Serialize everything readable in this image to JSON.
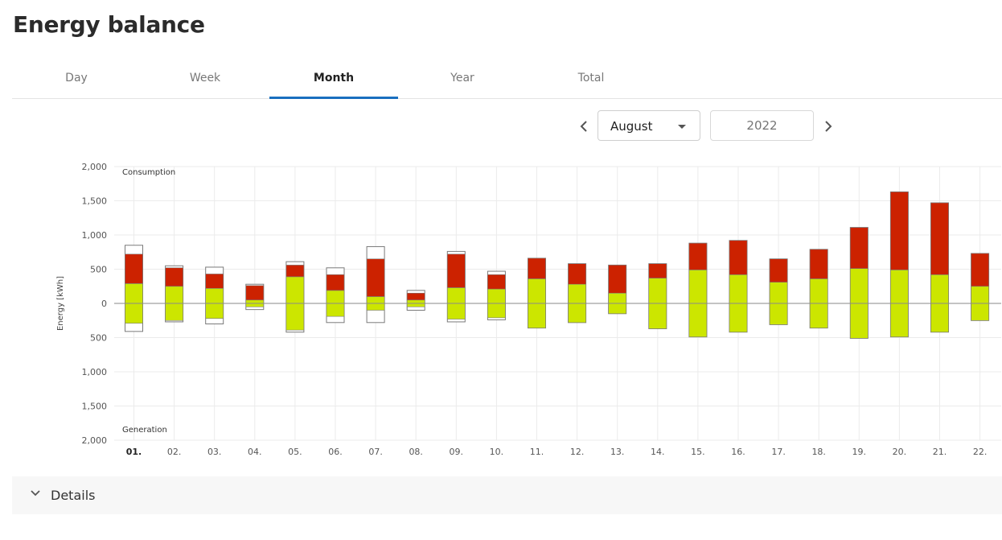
{
  "page": {
    "title": "Energy balance"
  },
  "tabs": [
    {
      "label": "Day",
      "active": false
    },
    {
      "label": "Week",
      "active": false
    },
    {
      "label": "Month",
      "active": true
    },
    {
      "label": "Year",
      "active": false
    },
    {
      "label": "Total",
      "active": false
    }
  ],
  "period": {
    "prev_icon": "chevron-left-icon",
    "next_icon": "chevron-right-icon",
    "month": "August",
    "year_placeholder": "2022"
  },
  "details": {
    "label": "Details",
    "icon": "chevron-down-icon"
  },
  "colors": {
    "consumption_grid": "#cc2200",
    "self_consumption": "#cce600",
    "outline": "#7a7a7a",
    "gridline": "#ebebeb"
  },
  "chart_data": {
    "type": "bar",
    "ylabel": "Energy [kWh]",
    "top_label": "Consumption",
    "bottom_label": "Generation",
    "ylim": [
      -2000,
      2000
    ],
    "yticks": [
      2000,
      1500,
      1000,
      500,
      0,
      -500,
      -1000,
      -1500,
      -2000
    ],
    "ytick_labels": [
      "2,000",
      "1,500",
      "1,000",
      "500",
      "0",
      "500",
      "1,000",
      "1,500",
      "2,000"
    ],
    "categories": [
      "01.",
      "02.",
      "03.",
      "04.",
      "05.",
      "06.",
      "07.",
      "08.",
      "09.",
      "10.",
      "11.",
      "12.",
      "13.",
      "14.",
      "15.",
      "16.",
      "17.",
      "18.",
      "19.",
      "20.",
      "21.",
      "22."
    ],
    "selected_category": "01.",
    "series": [
      {
        "key": "self_consumption",
        "values": [
          290,
          250,
          220,
          50,
          390,
          190,
          100,
          50,
          230,
          210,
          360,
          280,
          150,
          370,
          490,
          420,
          310,
          360,
          510,
          490,
          420,
          250
        ]
      },
      {
        "key": "grid_consumption",
        "values": [
          430,
          270,
          210,
          210,
          170,
          230,
          550,
          100,
          490,
          210,
          300,
          300,
          410,
          210,
          390,
          500,
          340,
          430,
          600,
          1140,
          1050,
          480
        ]
      },
      {
        "key": "consumption_total",
        "values": [
          850,
          550,
          530,
          280,
          610,
          520,
          830,
          190,
          760,
          470,
          660,
          580,
          560,
          580,
          880,
          920,
          650,
          790,
          1110,
          1630,
          1470,
          730
        ]
      },
      {
        "key": "feed_in_extra",
        "values": [
          120,
          20,
          80,
          40,
          30,
          90,
          180,
          50,
          40,
          30,
          0,
          0,
          0,
          0,
          0,
          0,
          0,
          0,
          0,
          0,
          0,
          0
        ]
      }
    ]
  }
}
